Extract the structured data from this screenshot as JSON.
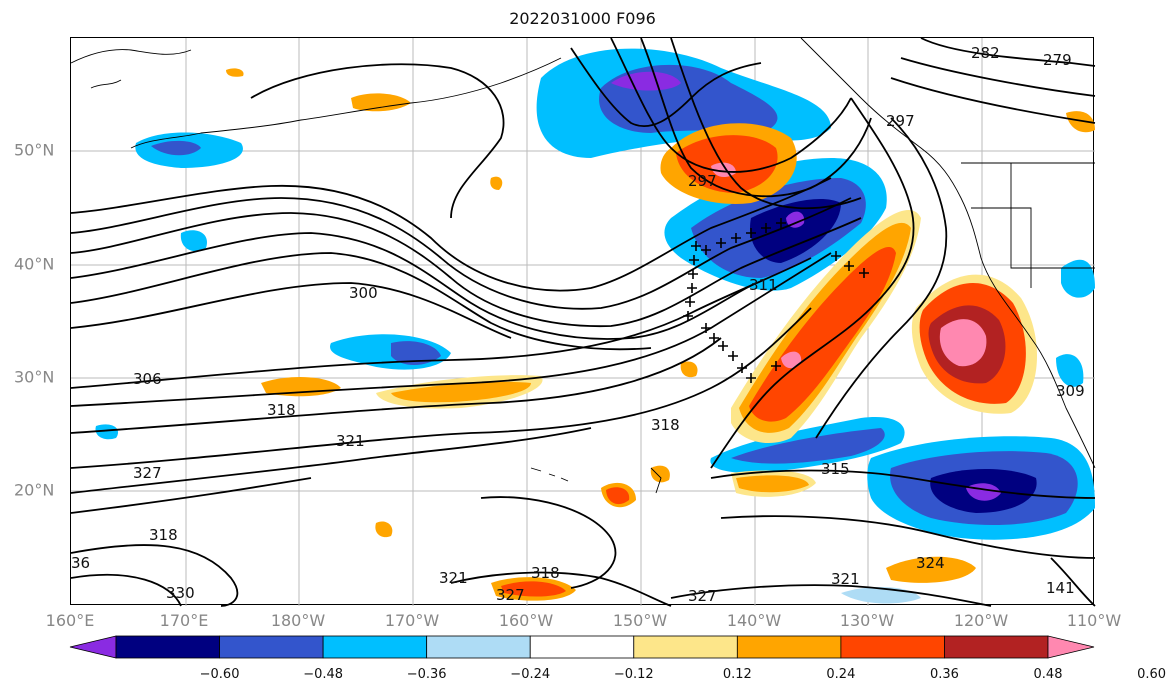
{
  "title": "2022031000 F096",
  "lon_labels": [
    "160°E",
    "170°E",
    "180°W",
    "170°W",
    "160°W",
    "150°W",
    "140°W",
    "130°W",
    "120°W",
    "110°W"
  ],
  "lat_labels": [
    "50°N",
    "40°N",
    "30°N",
    "20°N"
  ],
  "colorbar": {
    "ticks": [
      "−0.60",
      "−0.48",
      "−0.36",
      "−0.24",
      "−0.12",
      "0.12",
      "0.24",
      "0.36",
      "0.48",
      "0.60"
    ],
    "colors": [
      "#8a2be2",
      "#000080",
      "#3355cc",
      "#00bfff",
      "#aedcf5",
      "#ffffff",
      "#fde68a",
      "#ffa500",
      "#ff4500",
      "#b22222",
      "#ff88b0"
    ]
  },
  "contour_labels": [
    "282",
    "279",
    "297",
    "297",
    "300",
    "306",
    "318",
    "321",
    "327",
    "318",
    "330",
    "36",
    "318",
    "315",
    "311",
    "309",
    "321",
    "318",
    "327",
    "327",
    "321",
    "324",
    "141"
  ],
  "colors": {
    "neg_purple": "#8a2be2",
    "neg_navy": "#000080",
    "neg_blue": "#3355cc",
    "neg_sky": "#00bfff",
    "neg_light": "#aedcf5",
    "pos_yellow": "#fde68a",
    "pos_orange": "#ffa500",
    "pos_red": "#ff4500",
    "pos_brick": "#b22222",
    "pos_pink": "#ff88b0"
  }
}
